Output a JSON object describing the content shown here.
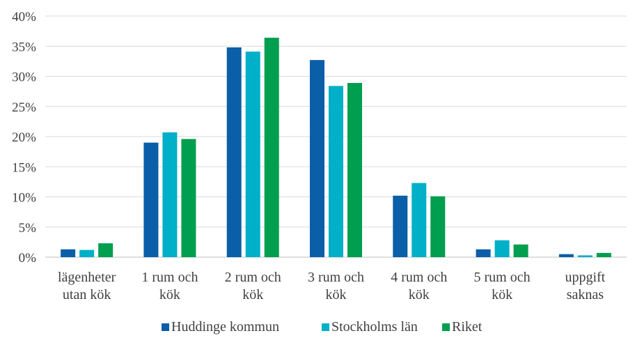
{
  "chart_data": {
    "type": "bar",
    "title": "",
    "xlabel": "",
    "ylabel": "",
    "ylim": [
      0,
      40
    ],
    "y_ticks": [
      "0%",
      "5%",
      "10%",
      "15%",
      "20%",
      "25%",
      "30%",
      "35%",
      "40%"
    ],
    "grid": true,
    "legend_position": "bottom",
    "categories": [
      [
        "lägenheter",
        "utan kök"
      ],
      [
        "1 rum och",
        "kök"
      ],
      [
        "2 rum och",
        "kök"
      ],
      [
        "3 rum och",
        "kök"
      ],
      [
        "4 rum och",
        "kök"
      ],
      [
        "5 rum och",
        "kök"
      ],
      [
        "uppgift",
        "saknas"
      ]
    ],
    "series": [
      {
        "name": "Huddinge kommun",
        "color": "#0b5ea8",
        "values": [
          1.3,
          19.0,
          34.8,
          32.7,
          10.2,
          1.3,
          0.5
        ]
      },
      {
        "name": "Stockholms län",
        "color": "#00b0c8",
        "values": [
          1.2,
          20.7,
          34.1,
          28.4,
          12.3,
          2.8,
          0.3
        ]
      },
      {
        "name": "Riket",
        "color": "#009e4f",
        "values": [
          2.3,
          19.6,
          36.4,
          28.9,
          10.1,
          2.1,
          0.7
        ]
      }
    ]
  }
}
